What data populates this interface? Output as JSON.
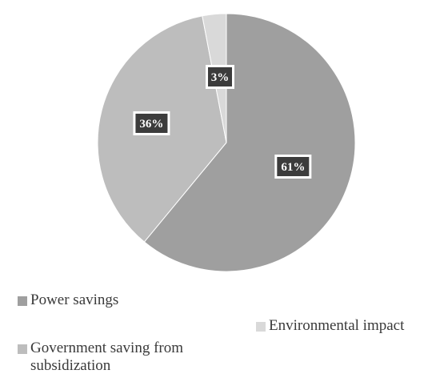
{
  "chart_data": {
    "type": "pie",
    "categories": [
      "Power savings",
      "Government saving from subsidization",
      "Environmental impact"
    ],
    "values": [
      61,
      36,
      3
    ],
    "data_labels": [
      "61%",
      "36%",
      "3%"
    ],
    "colors": [
      "#9f9f9f",
      "#bdbdbd",
      "#d9d9d9"
    ],
    "label_box_color": "#3c3c3c",
    "legend_position": "bottom",
    "start_angle_deg": 0,
    "direction": "clockwise"
  }
}
